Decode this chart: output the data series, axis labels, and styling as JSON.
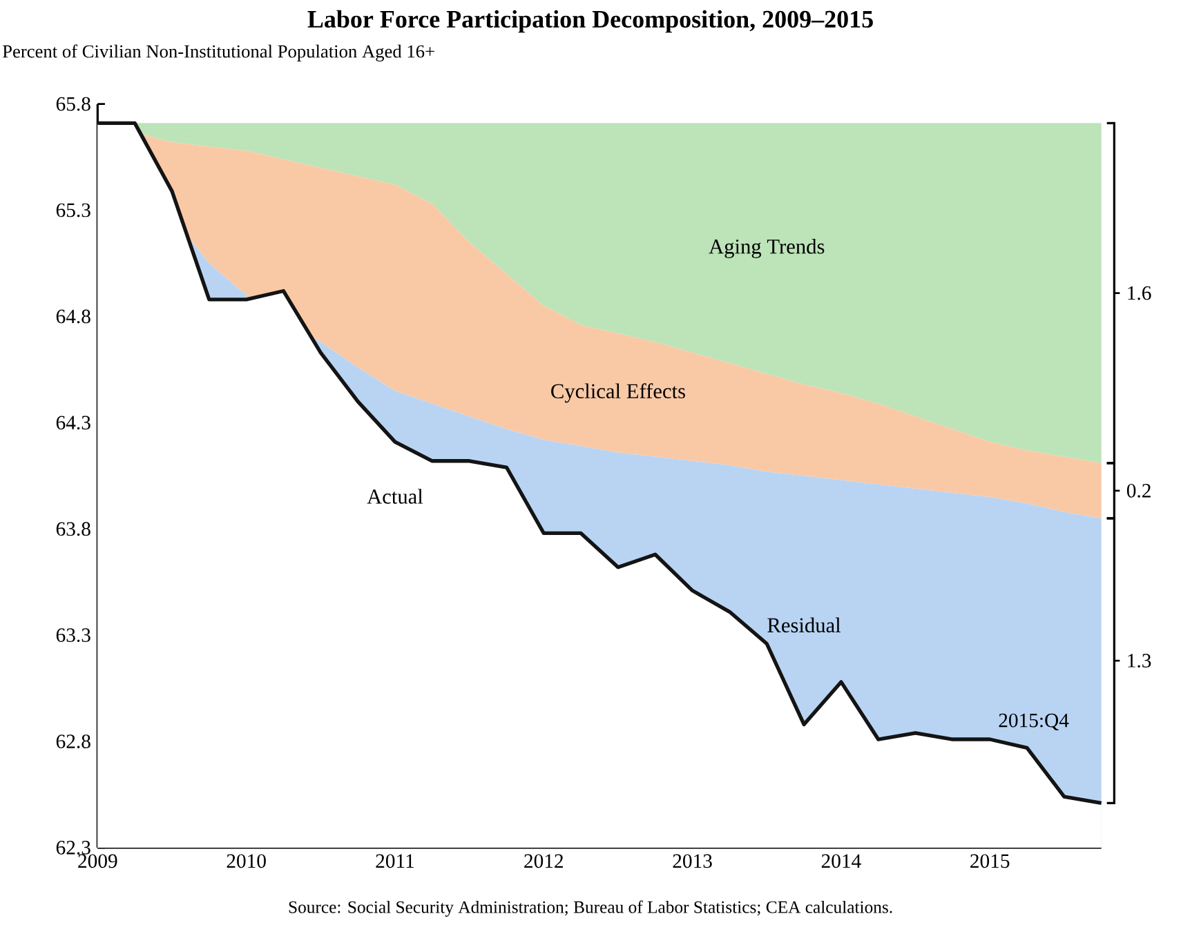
{
  "chart_data": {
    "type": "area",
    "title": "Labor Force Participation Decomposition, 2009–2015",
    "ylabel": "Percent of Civilian Non-Institutional Population Aged 16+",
    "x": [
      2009,
      2009.25,
      2009.5,
      2009.75,
      2010,
      2010.25,
      2010.5,
      2010.75,
      2011,
      2011.25,
      2011.5,
      2011.75,
      2012,
      2012.25,
      2012.5,
      2012.75,
      2013,
      2013.25,
      2013.5,
      2013.75,
      2014,
      2014.25,
      2014.5,
      2014.75,
      2015,
      2015.25,
      2015.5,
      2015.75
    ],
    "series": [
      {
        "name": "Aging Trends",
        "color": "#bde3b8",
        "values": [
          65.71,
          65.71,
          65.71,
          65.71,
          65.71,
          65.71,
          65.71,
          65.71,
          65.71,
          65.71,
          65.71,
          65.71,
          65.71,
          65.71,
          65.71,
          65.71,
          65.71,
          65.71,
          65.71,
          65.71,
          65.71,
          65.71,
          65.71,
          65.71,
          65.71,
          65.71,
          65.71,
          65.71
        ]
      },
      {
        "name": "Cyclical Effects",
        "color": "#f9c9a6",
        "values": [
          65.71,
          null,
          65.62,
          65.6,
          65.58,
          65.54,
          65.5,
          65.46,
          65.42,
          65.33,
          65.15,
          65.0,
          64.85,
          64.76,
          64.72,
          64.68,
          64.63,
          64.58,
          64.53,
          64.48,
          64.44,
          64.39,
          64.33,
          64.27,
          64.21,
          64.17,
          64.14,
          64.11
        ]
      },
      {
        "name": "Residual",
        "color": "#b9d4f3",
        "values": [
          65.71,
          null,
          null,
          65.05,
          64.9,
          null,
          64.68,
          64.56,
          64.45,
          64.39,
          64.33,
          64.27,
          64.22,
          64.19,
          64.16,
          64.14,
          64.12,
          64.1,
          64.07,
          64.05,
          64.03,
          64.01,
          63.99,
          63.97,
          63.95,
          63.92,
          63.88,
          63.85
        ]
      },
      {
        "name": "Actual",
        "type": "line",
        "color": "#141414",
        "values": [
          65.71,
          65.71,
          65.39,
          64.88,
          64.88,
          64.92,
          64.63,
          64.4,
          64.21,
          64.12,
          64.12,
          64.09,
          63.78,
          63.78,
          63.62,
          63.68,
          63.51,
          63.41,
          63.26,
          62.88,
          63.08,
          62.81,
          62.84,
          62.81,
          62.81,
          62.77,
          62.54,
          62.51
        ]
      }
    ],
    "xlim": [
      2009,
      2015.75
    ],
    "xticks": [
      2009,
      2010,
      2011,
      2012,
      2013,
      2014,
      2015
    ],
    "ylim": [
      62.3,
      65.8
    ],
    "yticks": [
      62.3,
      62.8,
      63.3,
      63.8,
      64.3,
      64.8,
      65.3,
      65.8
    ],
    "grid": false,
    "annotations": [
      "1.6",
      "0.2",
      "1.3",
      "2015:Q4",
      "Source: Social Security Administration; Bureau of Labor Statistics; CEA calculations."
    ]
  }
}
